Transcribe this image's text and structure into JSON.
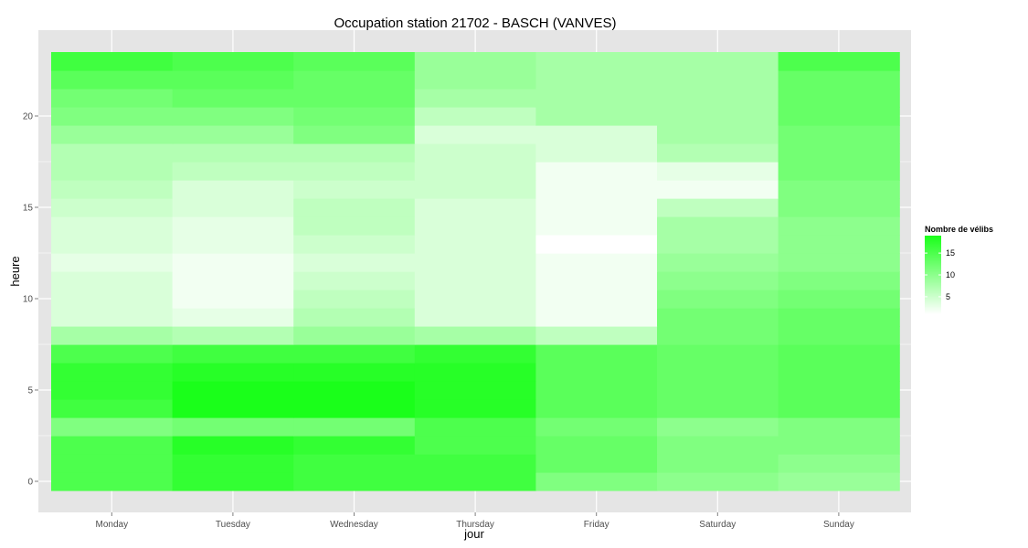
{
  "chart_data": {
    "type": "heatmap",
    "title": "Occupation station 21702 - BASCH (VANVES)",
    "xlabel": "jour",
    "ylabel": "heure",
    "categories": [
      "Monday",
      "Tuesday",
      "Wednesday",
      "Thursday",
      "Friday",
      "Saturday",
      "Sunday"
    ],
    "y": [
      0,
      1,
      2,
      3,
      4,
      5,
      6,
      7,
      8,
      9,
      10,
      11,
      12,
      13,
      14,
      15,
      16,
      17,
      18,
      19,
      20,
      21,
      22,
      23
    ],
    "ylim": [
      -0.5,
      23.5
    ],
    "yticks": [
      0,
      5,
      10,
      15,
      20
    ],
    "values": [
      [
        15,
        17,
        16,
        16,
        11,
        10,
        9
      ],
      [
        15,
        17,
        16,
        16,
        13,
        11,
        10
      ],
      [
        15,
        18,
        17,
        15,
        13,
        11,
        11
      ],
      [
        11,
        12,
        12,
        15,
        12,
        10,
        11
      ],
      [
        16,
        19,
        19,
        18,
        14,
        13,
        14
      ],
      [
        17,
        19,
        19,
        18,
        14,
        13,
        14
      ],
      [
        17,
        18,
        18,
        18,
        14,
        13,
        14
      ],
      [
        15,
        16,
        16,
        17,
        14,
        13,
        14
      ],
      [
        8,
        7,
        9,
        8,
        6,
        12,
        13
      ],
      [
        4,
        3,
        7,
        4,
        2,
        12,
        13
      ],
      [
        4,
        2,
        6,
        4,
        2,
        11,
        12
      ],
      [
        4,
        2,
        5,
        4,
        2,
        10,
        11
      ],
      [
        3,
        2,
        4,
        4,
        2,
        9,
        10
      ],
      [
        4,
        3,
        5,
        4,
        1,
        8,
        10
      ],
      [
        4,
        3,
        6,
        4,
        2,
        8,
        10
      ],
      [
        5,
        4,
        6,
        4,
        2,
        6,
        11
      ],
      [
        6,
        4,
        5,
        5,
        2,
        2,
        11
      ],
      [
        7,
        6,
        6,
        5,
        2,
        3,
        12
      ],
      [
        7,
        7,
        7,
        5,
        4,
        7,
        12
      ],
      [
        9,
        9,
        11,
        4,
        4,
        8,
        12
      ],
      [
        11,
        11,
        12,
        6,
        8,
        8,
        13
      ],
      [
        12,
        13,
        13,
        8,
        8,
        8,
        13
      ],
      [
        14,
        14,
        13,
        9,
        8,
        8,
        13
      ],
      [
        16,
        15,
        14,
        9,
        8,
        8,
        15
      ]
    ],
    "grid": true,
    "legend": {
      "title": "Nombre de vélibs",
      "position": "right",
      "range": [
        1,
        19
      ],
      "breaks": [
        5,
        10,
        15
      ],
      "low_color": "#ffffff",
      "high_color": "#1aff1a"
    },
    "panel_color": "#e5e5e5",
    "gridline_color": "#ffffff"
  }
}
